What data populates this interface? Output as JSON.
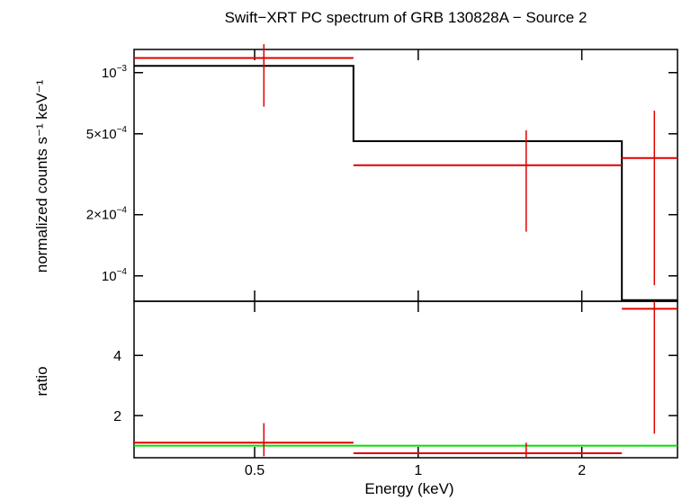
{
  "chart_data": {
    "type": "line",
    "title": "Swift−XRT PC spectrum of GRB 130828A − Source 2",
    "xlabel": "Energy (keV)",
    "xscale": "log",
    "xlim": [
      0.3,
      3.0
    ],
    "x_ticks": [
      {
        "value": 0.5,
        "label": "0.5"
      },
      {
        "value": 1,
        "label": "1"
      },
      {
        "value": 2,
        "label": "2"
      }
    ],
    "panels": [
      {
        "name": "spectrum",
        "ylabel": "normalized counts s⁻¹ keV⁻¹",
        "yscale": "log",
        "ylim": [
          7.5e-05,
          0.0013
        ],
        "y_ticks": [
          {
            "value": 0.0001,
            "base": "10",
            "exp": "−4"
          },
          {
            "value": 0.0002,
            "base": "2×10",
            "exp": "−4"
          },
          {
            "value": 0.0005,
            "base": "5×10",
            "exp": "−4"
          },
          {
            "value": 0.001,
            "base": "10",
            "exp": "−3"
          }
        ],
        "data": [
          {
            "x": 0.52,
            "xlo": 0.3,
            "xhi": 0.76,
            "y": 0.00118,
            "ylo": 0.00068,
            "yhi": 0.00138
          },
          {
            "x": 1.58,
            "xlo": 0.76,
            "xhi": 2.37,
            "y": 0.00035,
            "ylo": 0.000165,
            "yhi": 0.00052
          },
          {
            "x": 2.72,
            "xlo": 2.37,
            "xhi": 3.0,
            "y": 0.00038,
            "ylo": 9e-05,
            "yhi": 0.00065
          }
        ],
        "model": [
          {
            "xlo": 0.3,
            "xhi": 0.76,
            "y": 0.00108
          },
          {
            "xlo": 0.76,
            "xhi": 2.37,
            "y": 0.00046
          },
          {
            "xlo": 2.37,
            "xhi": 3.0,
            "y": 7.6e-05
          }
        ]
      },
      {
        "name": "ratio",
        "ylabel": "ratio",
        "yscale": "linear",
        "ylim": [
          0.6,
          5.8
        ],
        "y_ticks": [
          {
            "value": 2,
            "label": "2"
          },
          {
            "value": 4,
            "label": "4"
          }
        ],
        "reference": 1.0,
        "data": [
          {
            "x": 0.52,
            "xlo": 0.3,
            "xhi": 0.76,
            "y": 1.1,
            "ylo": 0.65,
            "yhi": 1.75
          },
          {
            "x": 1.58,
            "xlo": 0.76,
            "xhi": 2.37,
            "y": 0.75,
            "ylo": 0.6,
            "yhi": 1.1
          },
          {
            "x": 2.72,
            "xlo": 2.37,
            "xhi": 3.0,
            "y": 5.55,
            "ylo": 1.4,
            "yhi": 5.8
          }
        ]
      }
    ],
    "colors": {
      "data": "#e00000",
      "model": "#000000",
      "reference": "#00e000",
      "axes": "#000000"
    }
  }
}
